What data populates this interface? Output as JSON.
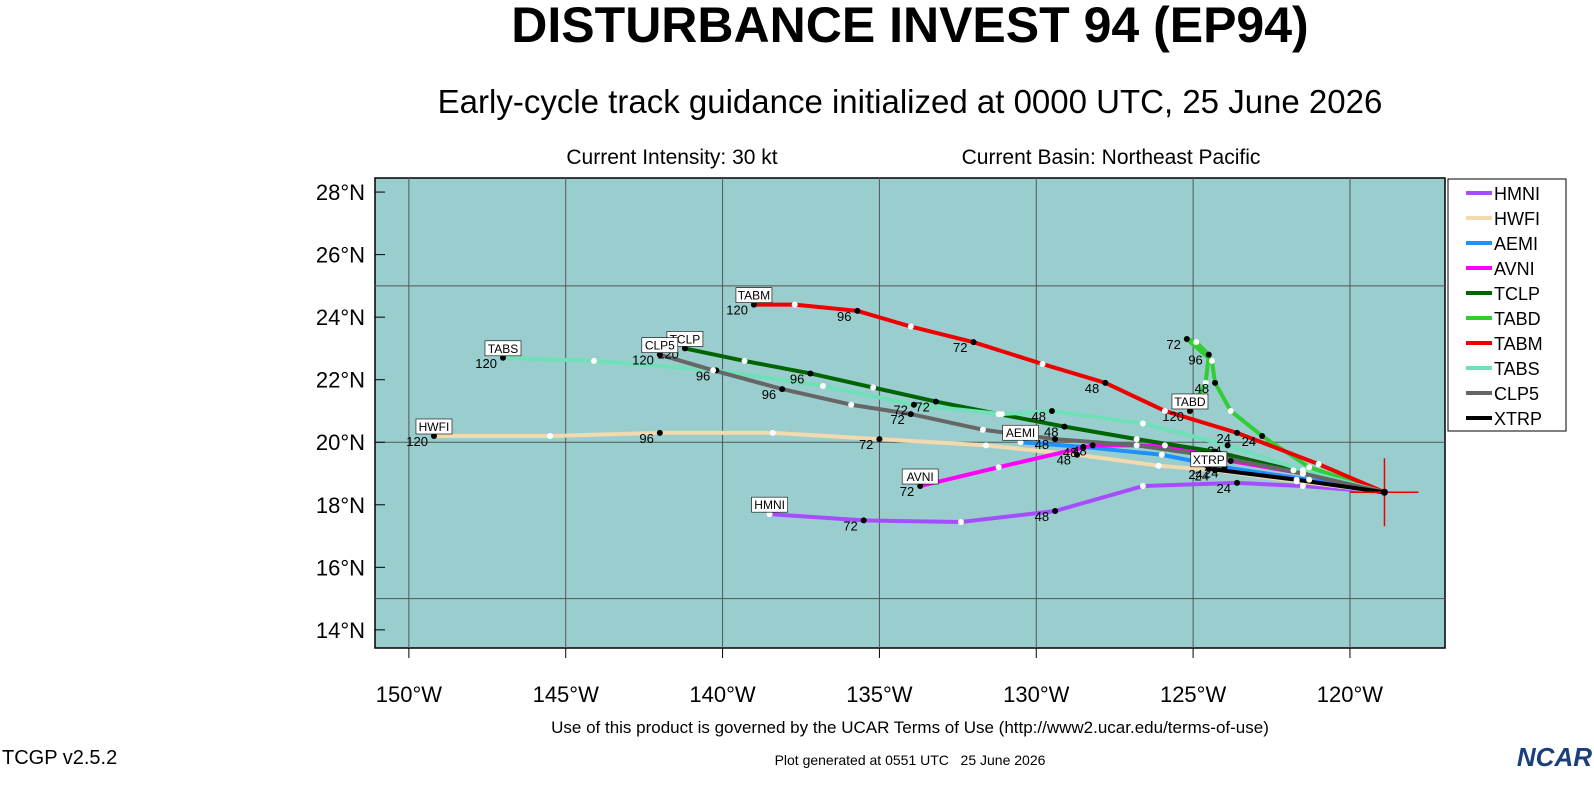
{
  "chart_data": {
    "type": "line",
    "title": "DISTURBANCE INVEST 94 (EP94)",
    "subtitle": "Early-cycle track guidance initialized at 0000 UTC, 25 June 2026",
    "info_left": "Current Intensity: 30 kt",
    "info_right": "Current Basin: Northeast Pacific",
    "footer": "Use of this product is governed by the UCAR Terms of Use (http://www2.ucar.edu/terms-of-use)",
    "version": "TCGP v2.5.2",
    "generated": "Plot generated at 0551 UTC   25 June 2026",
    "logo": "NCAR",
    "background": "#9acece",
    "xlim": [
      -151.08,
      -116.97
    ],
    "ylim": [
      13.42,
      28.45
    ],
    "xticks": [
      {
        "value": -150,
        "label": "150°W"
      },
      {
        "value": -145,
        "label": "145°W"
      },
      {
        "value": -140,
        "label": "140°W"
      },
      {
        "value": -135,
        "label": "135°W"
      },
      {
        "value": -130,
        "label": "130°W"
      },
      {
        "value": -125,
        "label": "125°W"
      },
      {
        "value": -120,
        "label": "120°W"
      }
    ],
    "yticks": [
      {
        "value": 14,
        "label": "14°N"
      },
      {
        "value": 16,
        "label": "16°N"
      },
      {
        "value": 18,
        "label": "18°N"
      },
      {
        "value": 20,
        "label": "20°N"
      },
      {
        "value": 22,
        "label": "22°N"
      },
      {
        "value": 24,
        "label": "24°N"
      },
      {
        "value": 26,
        "label": "26°N"
      },
      {
        "value": 28,
        "label": "28°N"
      }
    ],
    "ygrid": [
      15,
      20,
      25
    ],
    "initial_position": {
      "x": -118.9,
      "y": 18.4
    },
    "series": [
      {
        "name": "HMNI",
        "color": "#a64dff",
        "x": [
          -118.9,
          -121.5,
          -123.6,
          -126.6,
          -129.4,
          -132.4,
          -135.5,
          -138.5
        ],
        "values": [
          18.4,
          18.6,
          18.7,
          18.6,
          17.8,
          17.45,
          17.5,
          17.7
        ],
        "hour_labels": [
          24,
          48,
          72
        ]
      },
      {
        "name": "HWFI",
        "color": "#f2d9ae",
        "x": [
          -118.9,
          -121.7,
          -124.3,
          -126.1,
          -128.7,
          -131.6,
          -135.0,
          -138.4,
          -142.0,
          -145.5,
          -149.2
        ],
        "values": [
          18.4,
          18.75,
          19.1,
          19.25,
          19.6,
          19.9,
          20.1,
          20.3,
          20.3,
          20.2,
          20.2
        ],
        "hour_labels": [
          24,
          48,
          72,
          96,
          120
        ]
      },
      {
        "name": "AEMI",
        "color": "#1e90ff",
        "x": [
          -118.9,
          -121.3,
          -124.0,
          -126.0,
          -128.5,
          -130.5
        ],
        "values": [
          18.4,
          18.8,
          19.2,
          19.6,
          19.85,
          20.0
        ],
        "hour_labels": [
          24,
          48
        ]
      },
      {
        "name": "AVNI",
        "color": "#ff00ff",
        "x": [
          -118.9,
          -121.5,
          -123.8,
          -125.9,
          -128.2,
          -131.2,
          -133.7
        ],
        "values": [
          18.4,
          19.0,
          19.4,
          19.9,
          19.9,
          19.2,
          18.6
        ],
        "hour_labels": [
          24,
          48,
          72
        ]
      },
      {
        "name": "TCLP",
        "color": "#006400",
        "x": [
          -118.9,
          -121.8,
          -124.3,
          -126.8,
          -129.1,
          -131.2,
          -133.2,
          -135.2,
          -137.2,
          -139.3,
          -141.2
        ],
        "values": [
          18.4,
          19.1,
          19.7,
          20.1,
          20.5,
          20.9,
          21.3,
          21.75,
          22.2,
          22.6,
          23.0
        ],
        "hour_labels": [
          24,
          48,
          72,
          96,
          120
        ]
      },
      {
        "name": "TABD",
        "color": "#33cc33",
        "x": [
          -118.9,
          -121.3,
          -122.8,
          -123.8,
          -124.3,
          -124.4,
          -125.2,
          -124.9,
          -124.5,
          -124.6,
          -125.1
        ],
        "values": [
          18.4,
          19.2,
          20.2,
          21.0,
          21.9,
          22.6,
          23.3,
          23.2,
          22.8,
          21.9,
          21.0
        ],
        "hour_labels": [
          24,
          48,
          72,
          96,
          120
        ]
      },
      {
        "name": "TABM",
        "color": "#ee0000",
        "x": [
          -118.9,
          -121.0,
          -123.6,
          -125.9,
          -127.8,
          -129.8,
          -132.0,
          -134.0,
          -135.7,
          -137.7,
          -139.0
        ],
        "values": [
          18.4,
          19.3,
          20.3,
          21.0,
          21.9,
          22.5,
          23.2,
          23.7,
          24.2,
          24.4,
          24.4
        ],
        "hour_labels": [
          24,
          48,
          72,
          96,
          120
        ]
      },
      {
        "name": "TABS",
        "color": "#70e0b8",
        "x": [
          -118.9,
          -121.5,
          -123.9,
          -126.6,
          -129.5,
          -131.1,
          -133.9,
          -136.8,
          -140.2,
          -144.1,
          -147.0
        ],
        "values": [
          18.4,
          19.1,
          19.9,
          20.6,
          21.0,
          20.9,
          21.2,
          21.8,
          22.3,
          22.6,
          22.7
        ],
        "hour_labels": [
          24,
          48,
          72,
          96,
          120
        ]
      },
      {
        "name": "CLP5",
        "color": "#666666",
        "x": [
          -118.9,
          -121.5,
          -124.0,
          -126.8,
          -129.4,
          -131.7,
          -134.0,
          -135.9,
          -138.1,
          -140.3,
          -142.0
        ],
        "values": [
          18.4,
          19.0,
          19.5,
          19.9,
          20.1,
          20.4,
          20.9,
          21.2,
          21.7,
          22.3,
          22.8
        ],
        "hour_labels": [
          24,
          48,
          72,
          96,
          120
        ]
      },
      {
        "name": "XTRP",
        "color": "#000000",
        "x": [
          -118.9,
          -121.7,
          -124.5
        ],
        "values": [
          18.4,
          18.8,
          19.15
        ],
        "hour_labels": [
          24
        ]
      }
    ]
  }
}
